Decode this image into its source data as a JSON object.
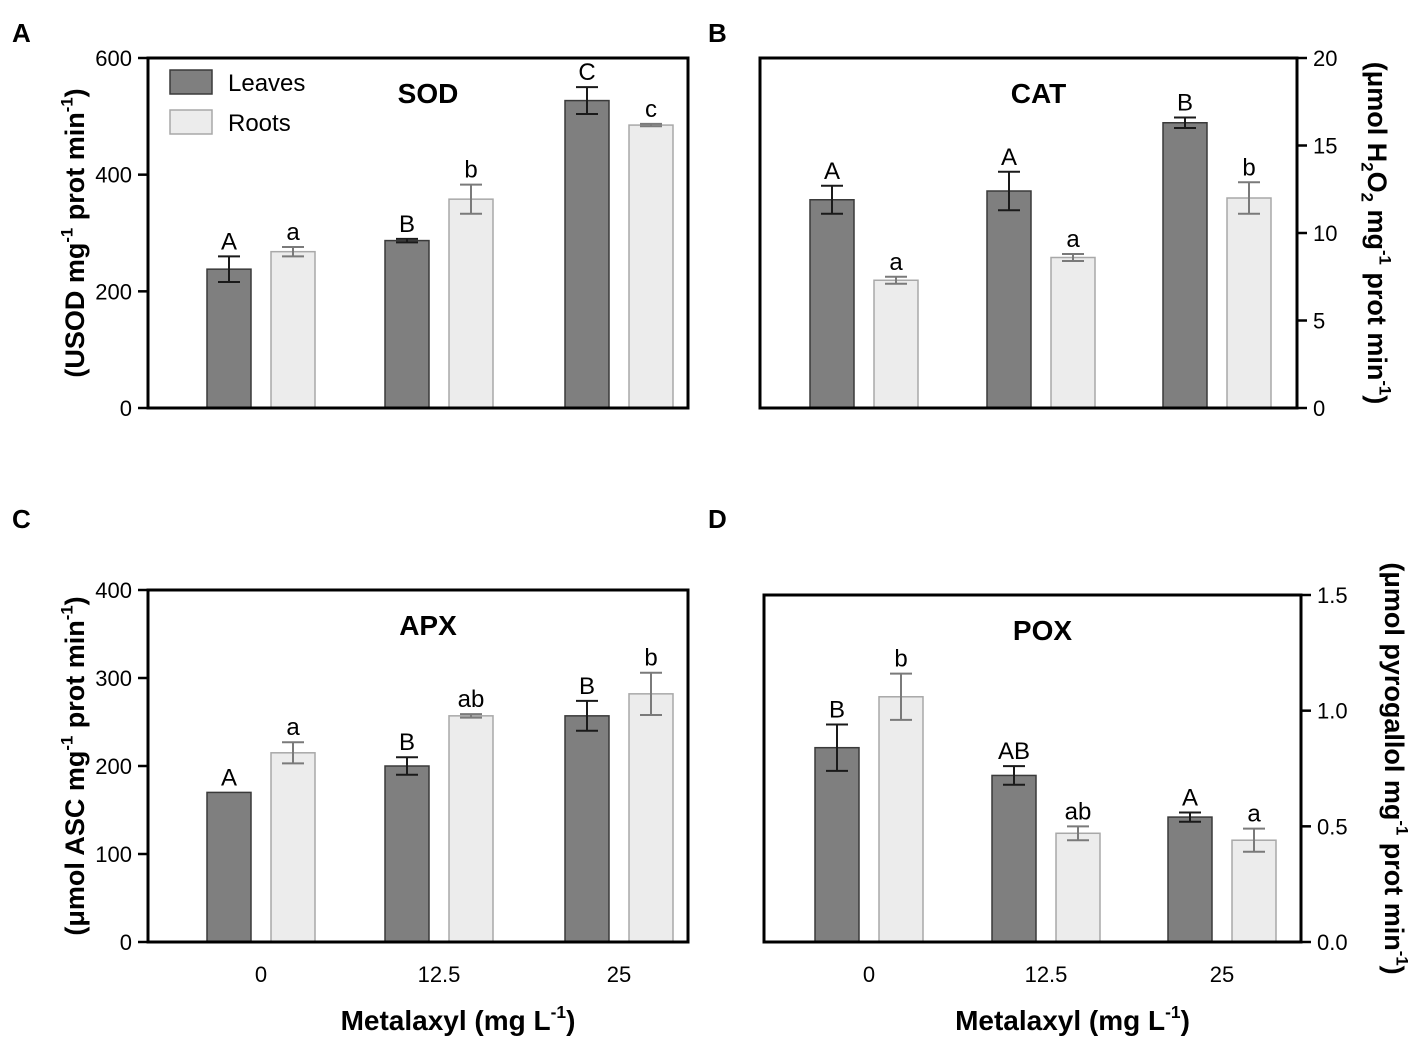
{
  "figure": {
    "x_axis_label": "Metalaxyl (mg L",
    "x_axis_label_sup": "-1",
    "x_axis_label_end": ")"
  },
  "colors": {
    "leaves_fill": "#7f7f7f",
    "roots_fill": "#ececec",
    "frame": "#000000",
    "leaves_err": "#1a1a1a",
    "roots_err": "#7a7a7a"
  },
  "chart_data": [
    {
      "panel": "A",
      "type": "bar",
      "title": "SOD",
      "categories": [
        "0",
        "12.5",
        "25"
      ],
      "show_xticks": false,
      "ylim": [
        0,
        600
      ],
      "yticks": [
        0,
        200,
        400,
        600
      ],
      "ylabel": "(USOD mg-1 prot min-1)",
      "ylabel_parts": [
        {
          "t": "(USOD mg"
        },
        {
          "t": "-1",
          "sup": true
        },
        {
          "t": " prot min"
        },
        {
          "t": "-1",
          "sup": true
        },
        {
          "t": ")"
        }
      ],
      "yaxis_side": "left",
      "legend": [
        "Leaves",
        "Roots"
      ],
      "series": [
        {
          "name": "Leaves",
          "values": [
            238,
            287,
            527
          ],
          "errors": [
            22,
            3,
            23
          ],
          "labels": [
            "A",
            "B",
            "C"
          ]
        },
        {
          "name": "Roots",
          "values": [
            268,
            358,
            485
          ],
          "errors": [
            8,
            25,
            2
          ],
          "labels": [
            "a",
            "b",
            "c"
          ]
        }
      ]
    },
    {
      "panel": "B",
      "type": "bar",
      "title": "CAT",
      "categories": [
        "0",
        "12.5",
        "25"
      ],
      "show_xticks": false,
      "ylim": [
        0,
        20
      ],
      "yticks": [
        0,
        5,
        10,
        15,
        20
      ],
      "ylabel": "(μmol H2O2 mg-1 prot min-1)",
      "ylabel_parts": [
        {
          "t": "(μmol H"
        },
        {
          "t": "2",
          "sub": true
        },
        {
          "t": "O"
        },
        {
          "t": "2",
          "sub": true
        },
        {
          "t": " mg"
        },
        {
          "t": "-1",
          "sup": true
        },
        {
          "t": " prot min"
        },
        {
          "t": "-1",
          "sup": true
        },
        {
          "t": ")"
        }
      ],
      "yaxis_side": "right",
      "series": [
        {
          "name": "Leaves",
          "values": [
            11.9,
            12.4,
            16.3
          ],
          "errors": [
            0.8,
            1.1,
            0.3
          ],
          "labels": [
            "A",
            "A",
            "B"
          ]
        },
        {
          "name": "Roots",
          "values": [
            7.3,
            8.6,
            12.0
          ],
          "errors": [
            0.2,
            0.2,
            0.9
          ],
          "labels": [
            "a",
            "a",
            "b"
          ]
        }
      ]
    },
    {
      "panel": "C",
      "type": "bar",
      "title": "APX",
      "categories": [
        "0",
        "12.5",
        "25"
      ],
      "show_xticks": true,
      "ylim": [
        0,
        400
      ],
      "yticks": [
        0,
        100,
        200,
        300,
        400
      ],
      "ylabel": "(μmol ASC mg-1 prot min-1)",
      "ylabel_parts": [
        {
          "t": "(μmol ASC mg"
        },
        {
          "t": "-1",
          "sup": true
        },
        {
          "t": " prot min"
        },
        {
          "t": "-1",
          "sup": true
        },
        {
          "t": ")"
        }
      ],
      "yaxis_side": "left",
      "series": [
        {
          "name": "Leaves",
          "values": [
            170,
            200,
            257
          ],
          "errors": [
            0,
            10,
            17
          ],
          "labels": [
            "A",
            "B",
            "B"
          ]
        },
        {
          "name": "Roots",
          "values": [
            215,
            257,
            282
          ],
          "errors": [
            12,
            2,
            24
          ],
          "labels": [
            "a",
            "ab",
            "b"
          ]
        }
      ]
    },
    {
      "panel": "D",
      "type": "bar",
      "title": "POX",
      "categories": [
        "0",
        "12.5",
        "25"
      ],
      "show_xticks": true,
      "ylim": [
        0,
        1.5
      ],
      "yticks": [
        0.0,
        0.5,
        1.0,
        1.5
      ],
      "ytick_labels": [
        "0.0",
        "0.5",
        "1.0",
        "1.5"
      ],
      "ylabel": "(μmol pyrogallol mg-1 prot min-1)",
      "ylabel_parts": [
        {
          "t": "(μmol pyrogallol mg"
        },
        {
          "t": "-1",
          "sup": true
        },
        {
          "t": " prot min"
        },
        {
          "t": "-1",
          "sup": true
        },
        {
          "t": ")"
        }
      ],
      "yaxis_side": "right",
      "series": [
        {
          "name": "Leaves",
          "values": [
            0.84,
            0.72,
            0.54
          ],
          "errors": [
            0.1,
            0.04,
            0.02
          ],
          "labels": [
            "B",
            "AB",
            "A"
          ]
        },
        {
          "name": "Roots",
          "values": [
            1.06,
            0.47,
            0.44
          ],
          "errors": [
            0.1,
            0.03,
            0.05
          ],
          "labels": [
            "b",
            "ab",
            "a"
          ]
        }
      ]
    }
  ]
}
